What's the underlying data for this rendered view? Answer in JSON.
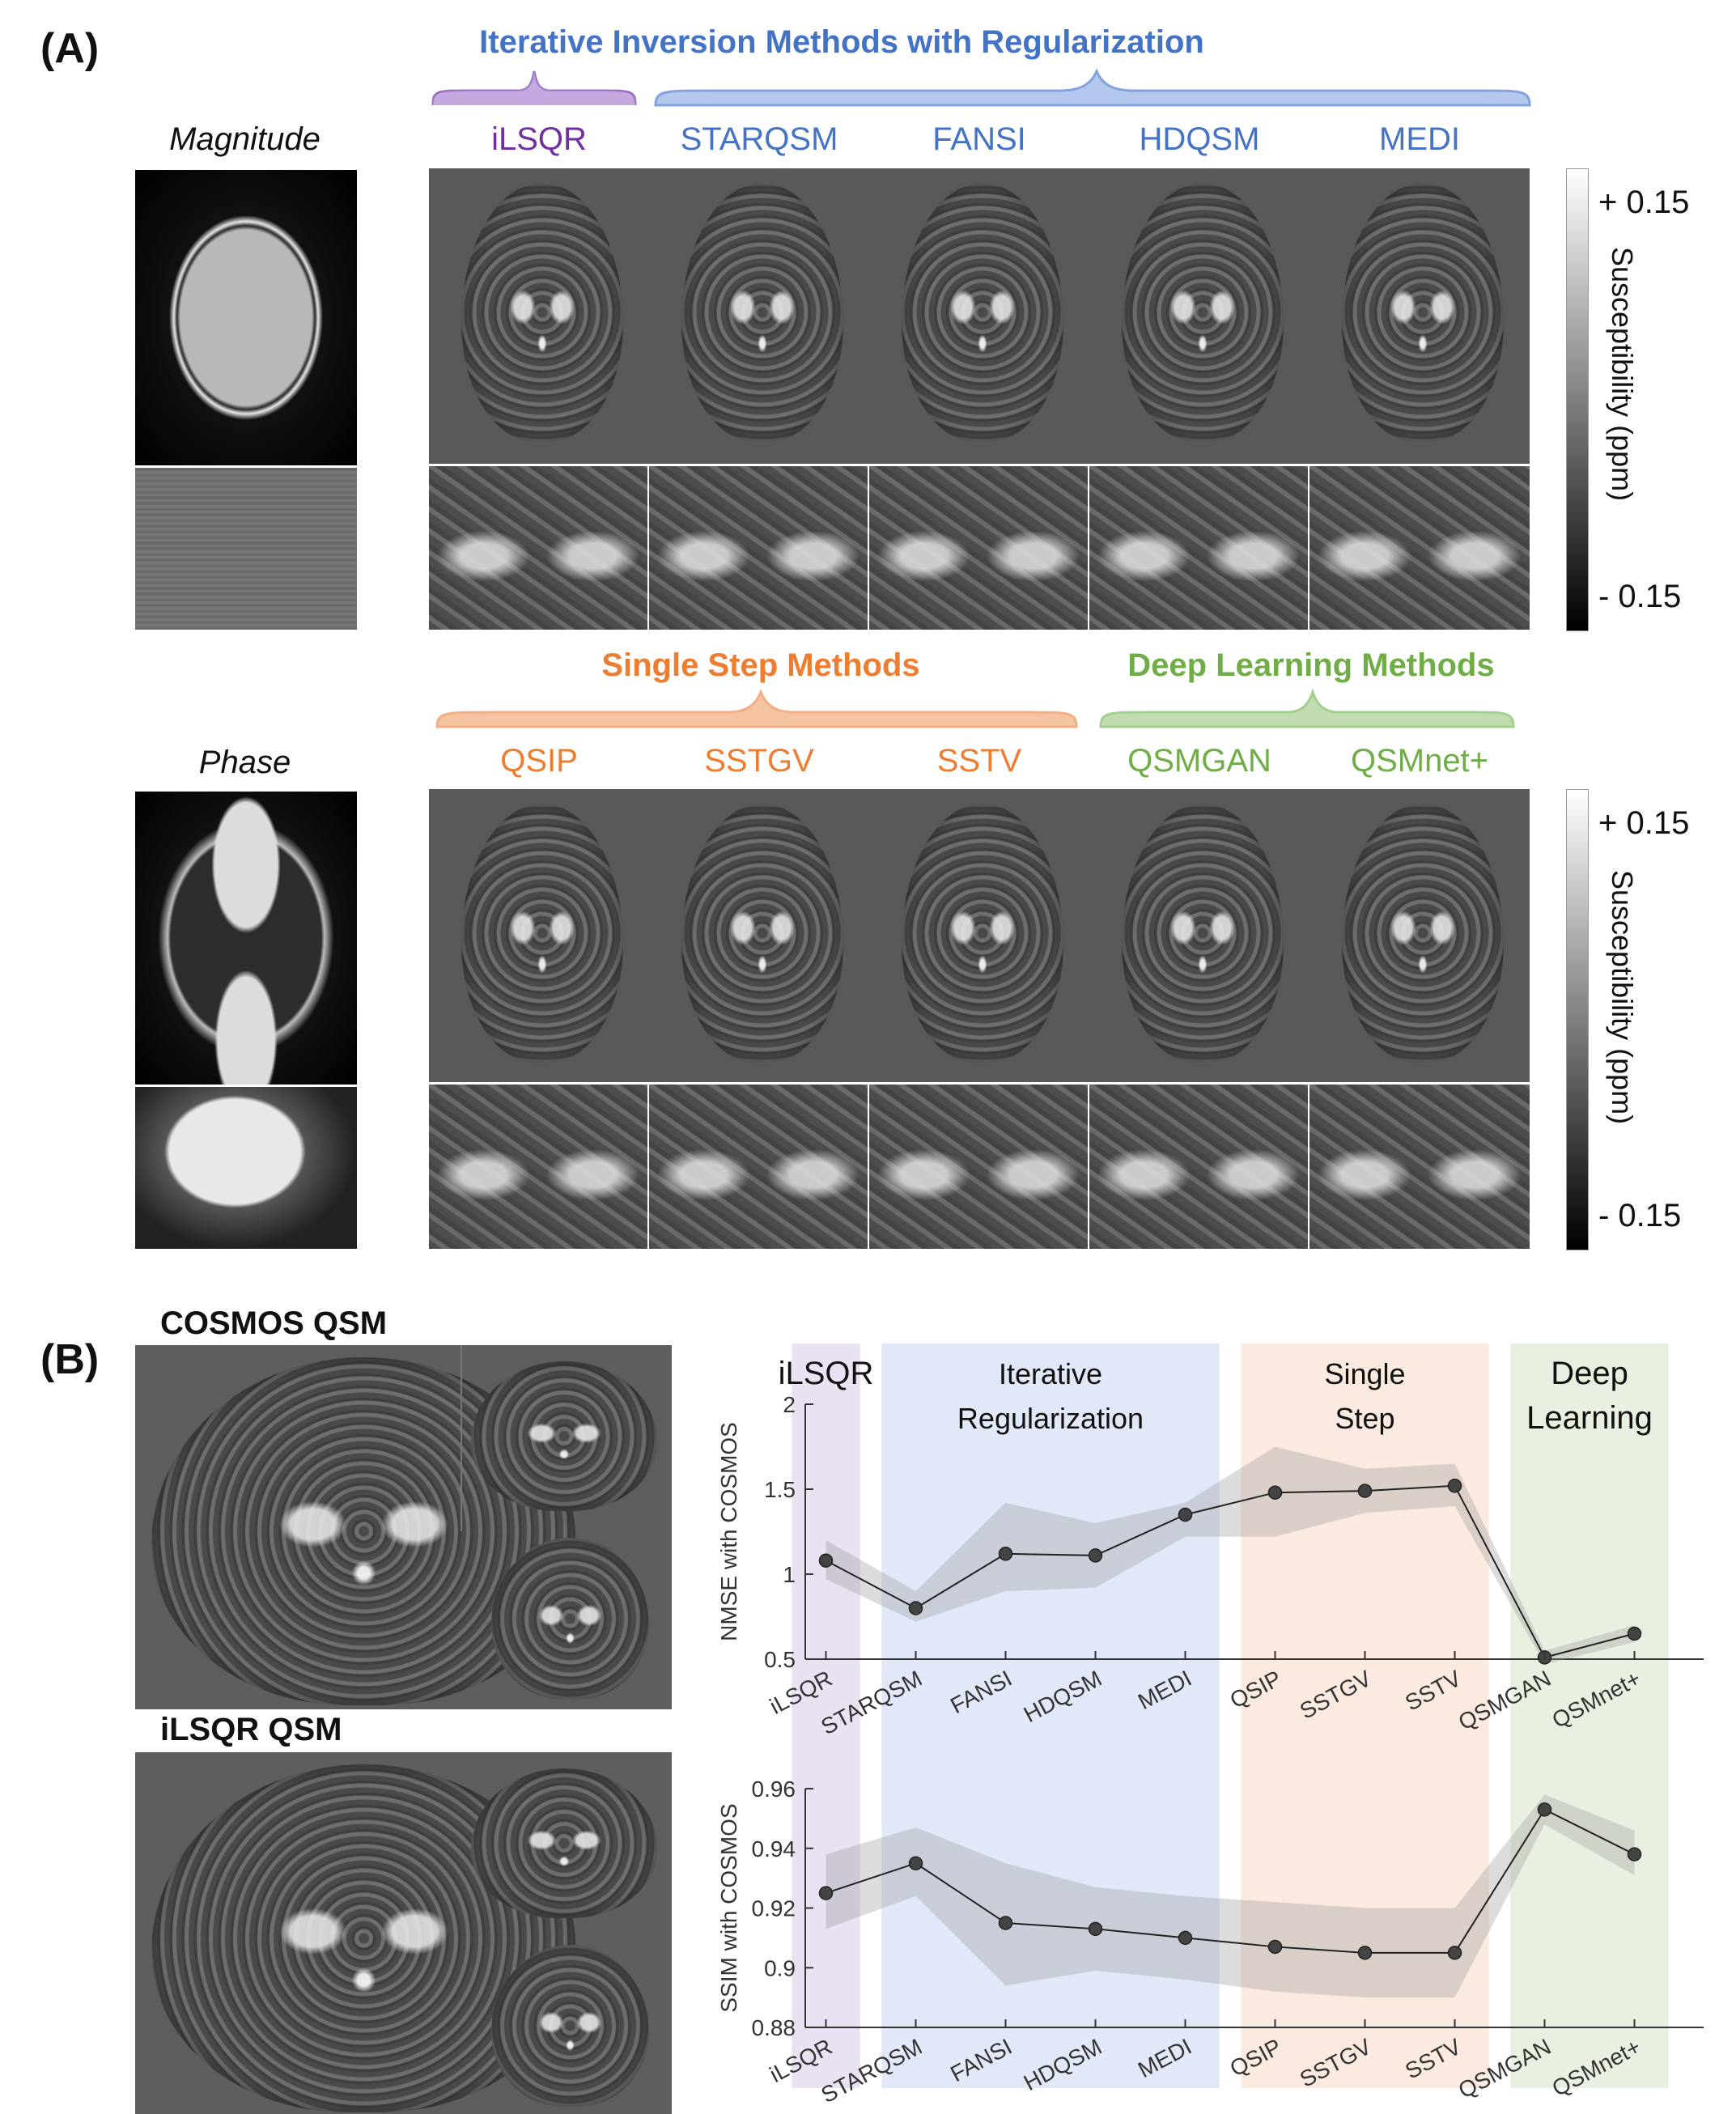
{
  "panel_a": {
    "label": "(A)",
    "magnitude_label": "Magnitude",
    "phase_label": "Phase",
    "groups": {
      "ilsqr": {
        "color": "#7030A0",
        "brace": "#9a6fc4"
      },
      "iterative": {
        "title": "Iterative Inversion Methods with Regularization",
        "color": "#4472C4",
        "brace": "#6f92d8"
      },
      "single_step": {
        "title": "Single Step Methods",
        "color": "#ED7D31",
        "brace": "#f0a070"
      },
      "deep_learning": {
        "title": "Deep Learning Methods",
        "color": "#70AD47",
        "brace": "#94c77a"
      }
    },
    "row1_methods": [
      "iLSQR",
      "STARQSM",
      "FANSI",
      "HDQSM",
      "MEDI"
    ],
    "row2_methods": [
      "QSIP",
      "SSTGV",
      "SSTV",
      "QSMGAN",
      "QSMnet+"
    ],
    "colorbar": {
      "max_label": "+ 0.15",
      "min_label": "- 0.15",
      "title": "Susceptibility (ppm)"
    }
  },
  "panel_b": {
    "label": "(B)",
    "cosmos_label": "COSMOS QSM",
    "ilsqr_label": "iLSQR QSM",
    "regions": [
      {
        "label": "iLSQR",
        "color": "#d9c9ea"
      },
      {
        "label": "Iterative Regularization",
        "color": "#cbd6f0"
      },
      {
        "label": "Single Step",
        "color": "#f7d9c6"
      },
      {
        "label": "Deep Learning",
        "color": "#d5e6c8"
      }
    ]
  },
  "chart_data": [
    {
      "type": "line",
      "categories": [
        "iLSQR",
        "STARQSM",
        "FANSI",
        "HDQSM",
        "MEDI",
        "QSIP",
        "SSTGV",
        "SSTV",
        "QSMGAN",
        "QSMnet+"
      ],
      "values": [
        1.08,
        0.8,
        1.12,
        1.11,
        1.35,
        1.48,
        1.49,
        1.52,
        0.51,
        0.65
      ],
      "band_upper": [
        1.2,
        0.9,
        1.42,
        1.3,
        1.42,
        1.75,
        1.62,
        1.65,
        0.55,
        0.7
      ],
      "band_lower": [
        0.97,
        0.72,
        0.9,
        0.92,
        1.22,
        1.22,
        1.36,
        1.4,
        0.47,
        0.6
      ],
      "ylabel": "NMSE with COSMOS",
      "ylim": [
        0.5,
        2
      ],
      "yticks": [
        "0.5",
        "1",
        "1.5",
        "2"
      ]
    },
    {
      "type": "line",
      "categories": [
        "iLSQR",
        "STARQSM",
        "FANSI",
        "HDQSM",
        "MEDI",
        "QSIP",
        "SSTGV",
        "SSTV",
        "QSMGAN",
        "QSMnet+"
      ],
      "values": [
        0.925,
        0.935,
        0.915,
        0.913,
        0.91,
        0.907,
        0.905,
        0.905,
        0.953,
        0.938
      ],
      "band_upper": [
        0.938,
        0.947,
        0.935,
        0.927,
        0.924,
        0.922,
        0.92,
        0.92,
        0.958,
        0.946
      ],
      "band_lower": [
        0.913,
        0.924,
        0.894,
        0.899,
        0.896,
        0.892,
        0.89,
        0.89,
        0.948,
        0.931
      ],
      "ylabel": "SSIM with COSMOS",
      "ylim": [
        0.88,
        0.96
      ],
      "yticks": [
        "0.88",
        "0.9",
        "0.92",
        "0.94",
        "0.96"
      ]
    }
  ]
}
